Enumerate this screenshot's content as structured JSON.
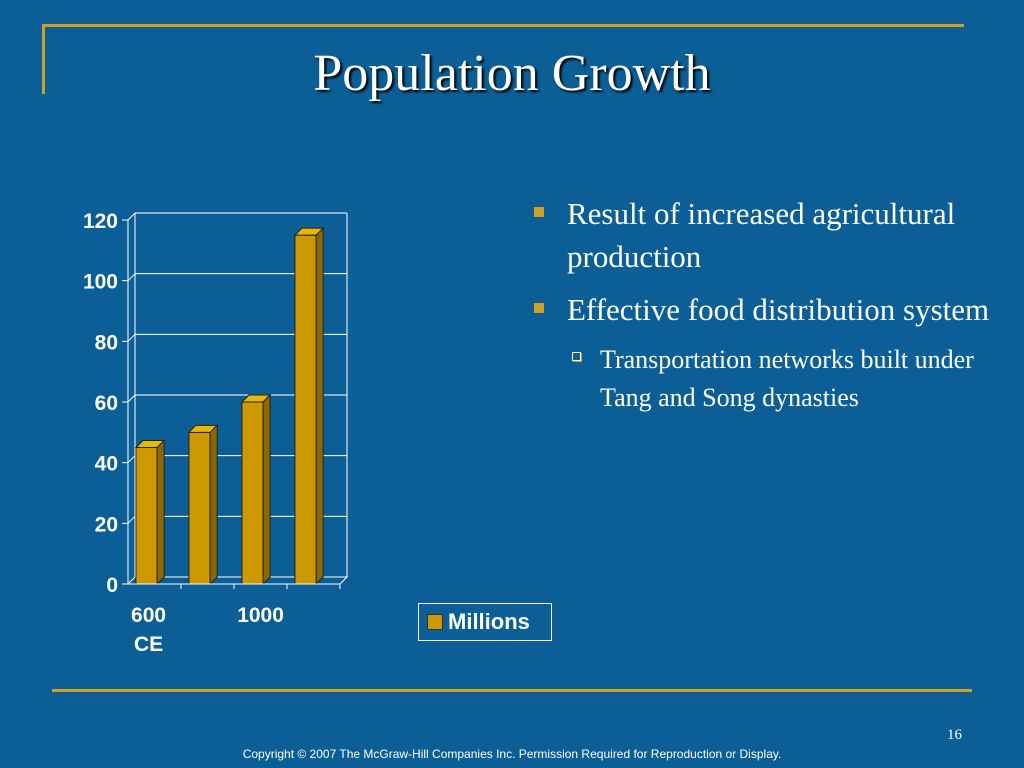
{
  "slide": {
    "title": "Population Growth",
    "page_number": "16",
    "copyright": "Copyright © 2007 The McGraw-Hill Companies Inc. Permission Required for Reproduction or Display."
  },
  "bullets": [
    {
      "text": "Result of increased agricultural production"
    },
    {
      "text": "Effective food distribution system"
    }
  ],
  "subbullets": [
    {
      "text": "Transportation networks built under Tang and Song dynasties"
    }
  ],
  "colors": {
    "background": "#0b5f96",
    "accent": "#c9a227",
    "bar": "#cc9900"
  },
  "chart_data": {
    "type": "bar",
    "categories": [
      "600 CE",
      "",
      "1000",
      ""
    ],
    "x_tick_lines": [
      [
        "600",
        "CE"
      ],
      [],
      [
        "1000"
      ],
      []
    ],
    "series": [
      {
        "name": "Millions",
        "values": [
          45,
          50,
          60,
          115
        ]
      }
    ],
    "ylim": [
      0,
      120
    ],
    "yticks": [
      0,
      20,
      40,
      60,
      80,
      100,
      120
    ],
    "grid": true,
    "legend_position": "right",
    "title": "",
    "xlabel": "",
    "ylabel": ""
  }
}
